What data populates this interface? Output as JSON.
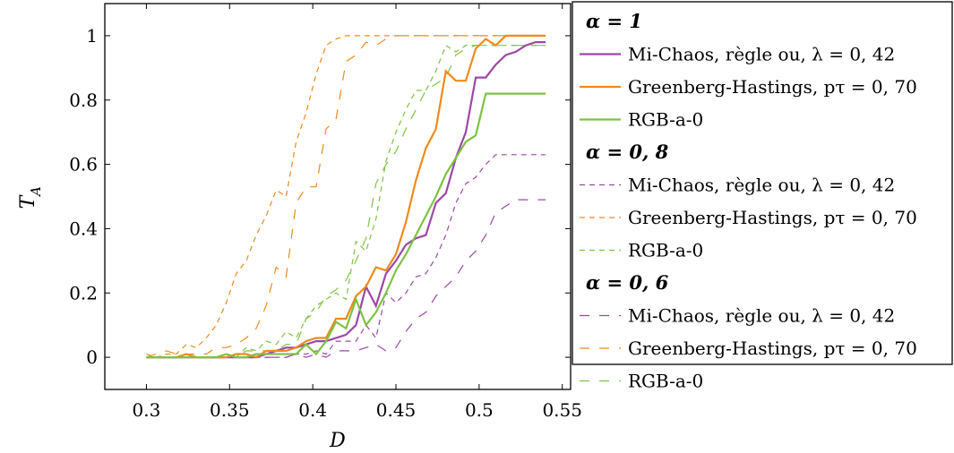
{
  "chart_data": {
    "type": "line",
    "xlabel": "D",
    "ylabel": "T_A",
    "xlim": [
      0.275,
      0.555
    ],
    "ylim": [
      -0.1,
      1.1
    ],
    "x_ticks": [
      0.3,
      0.35,
      0.4,
      0.45,
      0.5,
      0.55
    ],
    "x_tick_labels": [
      "0.3",
      "0.35",
      "0.4",
      "0.45",
      "0.5",
      "0.55"
    ],
    "y_ticks": [
      0,
      0.2,
      0.4,
      0.6,
      0.8,
      1
    ],
    "y_tick_labels": [
      "0",
      "0.2",
      "0.4",
      "0.6",
      "0.8",
      "1"
    ],
    "grid": false,
    "legend_position": "right-outside",
    "x": [
      0.3,
      0.306,
      0.312,
      0.318,
      0.324,
      0.33,
      0.336,
      0.342,
      0.348,
      0.354,
      0.36,
      0.366,
      0.372,
      0.378,
      0.384,
      0.39,
      0.396,
      0.402,
      0.408,
      0.414,
      0.42,
      0.426,
      0.432,
      0.438,
      0.444,
      0.45,
      0.456,
      0.462,
      0.468,
      0.474,
      0.48,
      0.486,
      0.492,
      0.498,
      0.504,
      0.51,
      0.516,
      0.522,
      0.528,
      0.534,
      0.54
    ],
    "groups": [
      {
        "heading": "α = 1",
        "dash": "solid",
        "series": [
          {
            "name": "Mi-Chaos, règle ou, λ = 0, 42",
            "color": "#9b48a5",
            "values": [
              0,
              0,
              0,
              0,
              0,
              0,
              0,
              0,
              0,
              0,
              0,
              0,
              0.01,
              0.02,
              0.03,
              0.03,
              0.04,
              0.05,
              0.05,
              0.06,
              0.07,
              0.1,
              0.22,
              0.16,
              0.26,
              0.3,
              0.35,
              0.37,
              0.38,
              0.48,
              0.51,
              0.62,
              0.7,
              0.87,
              0.87,
              0.91,
              0.94,
              0.95,
              0.97,
              0.98,
              0.98
            ]
          },
          {
            "name": "Greenberg-Hastings, pτ = 0, 70",
            "color": "#f08a1c",
            "values": [
              0,
              0,
              0,
              0,
              0.01,
              0,
              0,
              0,
              0,
              0.01,
              0.01,
              0,
              0.02,
              0.02,
              0.02,
              0.03,
              0.05,
              0.06,
              0.06,
              0.12,
              0.12,
              0.19,
              0.22,
              0.28,
              0.27,
              0.32,
              0.42,
              0.55,
              0.65,
              0.71,
              0.89,
              0.86,
              0.86,
              0.96,
              0.99,
              0.97,
              1,
              1,
              1,
              1,
              1
            ]
          },
          {
            "name": "RGB-a-0",
            "color": "#7dc243",
            "values": [
              0,
              0,
              0,
              0,
              0,
              0,
              0,
              0,
              0.01,
              0,
              0,
              0.01,
              0.01,
              0.01,
              0.01,
              0.01,
              0.04,
              0.01,
              0.05,
              0.11,
              0.09,
              0.18,
              0.1,
              0.14,
              0.2,
              0.27,
              0.32,
              0.38,
              0.44,
              0.5,
              0.57,
              0.62,
              0.67,
              0.69,
              0.82,
              0.82,
              0.82,
              0.82,
              0.82,
              0.82,
              0.82
            ]
          }
        ]
      },
      {
        "heading": "α = 0, 8",
        "dash": "6,5",
        "series": [
          {
            "name": "Mi-Chaos, règle ou, λ = 0, 42",
            "color": "#9b48a5",
            "values": [
              0,
              0,
              0,
              0,
              0,
              0,
              0,
              0,
              0,
              0,
              0,
              0,
              0,
              0,
              0,
              0.01,
              0.01,
              0.02,
              0.01,
              0.05,
              0.05,
              0.05,
              0.1,
              0.06,
              0.2,
              0.17,
              0.2,
              0.25,
              0.26,
              0.31,
              0.38,
              0.48,
              0.54,
              0.56,
              0.6,
              0.63,
              0.63,
              0.63,
              0.63,
              0.63,
              0.63
            ]
          },
          {
            "name": "Greenberg-Hastings, pτ = 0, 70",
            "color": "#f08a1c",
            "values": [
              0.01,
              0,
              0.01,
              0.01,
              0.04,
              0.03,
              0.06,
              0.1,
              0.17,
              0.26,
              0.3,
              0.38,
              0.44,
              0.52,
              0.5,
              0.67,
              0.76,
              0.88,
              0.97,
              0.99,
              1,
              1,
              1,
              1,
              1,
              1,
              1,
              1,
              1,
              1,
              1,
              1,
              1,
              1,
              1,
              1,
              1,
              1,
              1,
              1,
              1
            ]
          },
          {
            "name": "RGB-a-0",
            "color": "#7dc243",
            "values": [
              0,
              0,
              0,
              0,
              0,
              0,
              0,
              0,
              0,
              0,
              0.03,
              0.02,
              0.05,
              0.04,
              0.08,
              0.06,
              0.12,
              0.16,
              0.18,
              0.2,
              0.18,
              0.36,
              0.33,
              0.43,
              0.61,
              0.7,
              0.77,
              0.83,
              0.83,
              0.89,
              0.97,
              0.95,
              0.97,
              0.97,
              0.97,
              0.97,
              0.97,
              0.97,
              0.97,
              0.97,
              0.97
            ]
          }
        ]
      },
      {
        "heading": "α = 0, 6",
        "dash": "11,11",
        "series": [
          {
            "name": "Mi-Chaos, règle ou, λ = 0, 42",
            "color": "#9b48a5",
            "values": [
              0,
              0,
              0,
              0,
              0,
              0,
              0,
              0,
              0,
              0,
              0,
              0,
              0,
              0,
              0,
              0.01,
              0,
              0.01,
              0,
              0.02,
              0.02,
              0.02,
              0.03,
              0.04,
              0.02,
              0.03,
              0.08,
              0.12,
              0.14,
              0.19,
              0.22,
              0.25,
              0.3,
              0.33,
              0.38,
              0.45,
              0.47,
              0.49,
              0.49,
              0.49,
              0.49
            ]
          },
          {
            "name": "Greenberg-Hastings, pτ = 0, 70",
            "color": "#f08a1c",
            "values": [
              0,
              0.01,
              0.02,
              0.01,
              0.01,
              0.01,
              0.01,
              0.03,
              0.03,
              0.04,
              0.06,
              0.09,
              0.16,
              0.28,
              0.25,
              0.48,
              0.53,
              0.53,
              0.71,
              0.74,
              0.92,
              0.94,
              0.98,
              0.97,
              0.99,
              1,
              1,
              1,
              1,
              1,
              1,
              1,
              1,
              1,
              1,
              1,
              1,
              1,
              1,
              1,
              1
            ]
          },
          {
            "name": "RGB-a-0",
            "color": "#7dc243",
            "values": [
              0,
              0,
              0,
              0,
              0,
              0,
              0,
              0,
              0,
              0,
              0.02,
              0.02,
              0.02,
              0.02,
              0.04,
              0.04,
              0.12,
              0.14,
              0.19,
              0.21,
              0.24,
              0.3,
              0.37,
              0.54,
              0.6,
              0.64,
              0.71,
              0.77,
              0.83,
              0.85,
              0.87,
              0.94,
              0.96,
              0.97,
              0.97,
              0.97,
              0.97,
              0.97,
              0.97,
              0.97,
              0.97
            ]
          }
        ]
      }
    ]
  }
}
